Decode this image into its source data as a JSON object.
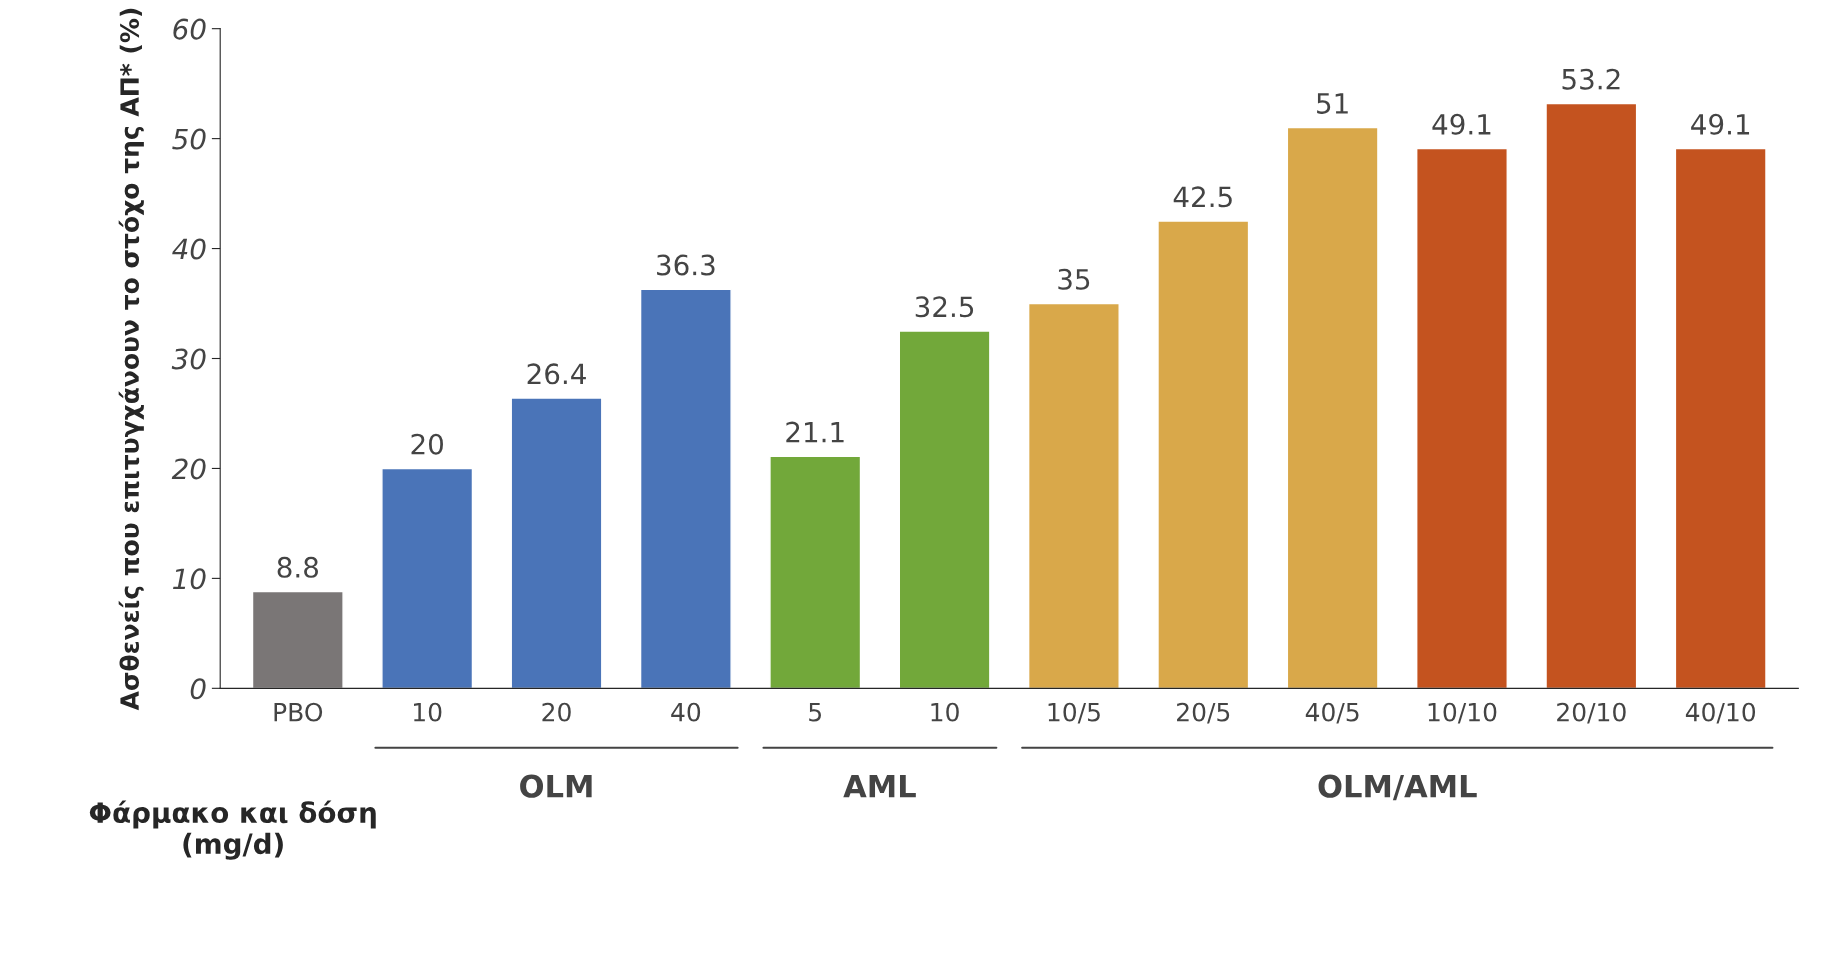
{
  "chart_data": {
    "type": "bar",
    "ylabel": "Ασθενείς που επιτυγχάνουν το στόχο της ΑΠ* (%)",
    "categories": [
      "PBO",
      "10",
      "20",
      "40",
      "5",
      "10",
      "10/5",
      "20/5",
      "40/5",
      "10/10",
      "20/10",
      "40/10"
    ],
    "values": [
      8.8,
      20,
      26.4,
      36.3,
      21.1,
      32.5,
      35,
      42.5,
      51,
      49.1,
      53.2,
      49.1
    ],
    "colors": [
      "#7a7676",
      "#4a74b8",
      "#4a74b8",
      "#4a74b8",
      "#72a83a",
      "#72a83a",
      "#d9a84a",
      "#d9a84a",
      "#d9a84a",
      "#c4531f",
      "#c4531f",
      "#c4531f"
    ],
    "ylim": [
      0,
      60
    ],
    "yticks": [
      0,
      10,
      20,
      30,
      40,
      50,
      60
    ],
    "data_labels": true,
    "grid": false,
    "annotations": [
      "Φάρμακο και δόση\n(mg/d)",
      "OLM",
      "AML",
      "OLM/AML"
    ]
  }
}
